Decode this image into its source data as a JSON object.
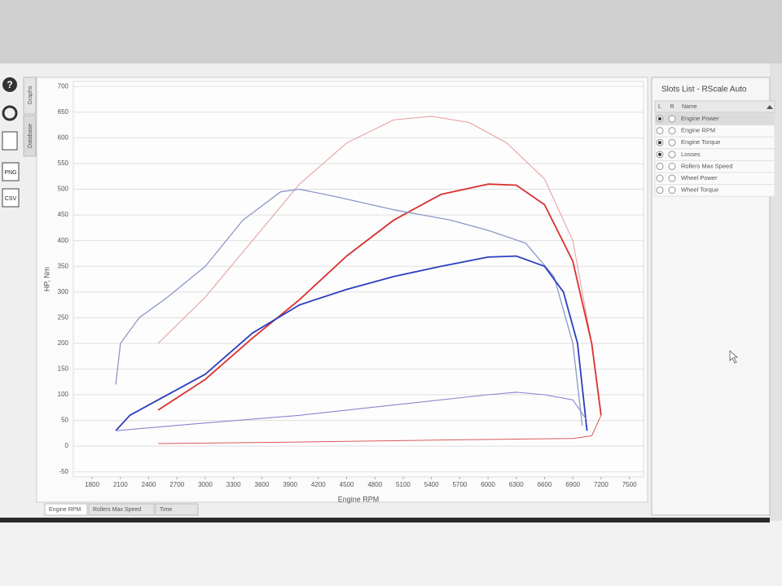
{
  "sidebar": {
    "tabs": [
      "Graphs",
      "Database"
    ],
    "buttons": [
      "PNG",
      "CSV"
    ]
  },
  "chart_data": {
    "type": "line",
    "x_label": "Engine RPM",
    "y_label": "HP, Nm",
    "xlim": [
      1600,
      7650
    ],
    "ylim": [
      -60,
      710
    ],
    "xticks": [
      1800,
      2100,
      2400,
      2700,
      3000,
      3300,
      3600,
      3900,
      4200,
      4500,
      4800,
      5100,
      5400,
      5700,
      6000,
      6300,
      6600,
      6900,
      7200,
      7500
    ],
    "yticks": [
      -50,
      0,
      50,
      100,
      150,
      200,
      250,
      300,
      350,
      400,
      450,
      500,
      550,
      600,
      650,
      700
    ],
    "grid": true,
    "series": [
      {
        "color": "#e79a9a",
        "line_width": 1,
        "x": [
          2500,
          3000,
          3500,
          4000,
          4500,
          5000,
          5400,
          5800,
          6200,
          6600,
          6900,
          7100,
          7200
        ],
        "values": [
          200,
          290,
          400,
          510,
          590,
          635,
          642,
          630,
          590,
          520,
          400,
          200,
          60
        ]
      },
      {
        "color": "#d9302e",
        "line_width": 1.8,
        "x": [
          2500,
          3000,
          3500,
          4000,
          4500,
          5000,
          5500,
          6000,
          6300,
          6600,
          6900,
          7100,
          7200
        ],
        "values": [
          70,
          130,
          210,
          285,
          370,
          440,
          490,
          510,
          508,
          470,
          360,
          200,
          60
        ]
      },
      {
        "color": "#8c98c8",
        "line_width": 1.3,
        "x": [
          2050,
          2100,
          2300,
          2600,
          3000,
          3400,
          3800,
          4000,
          4400,
          5000,
          5600,
          6000,
          6400,
          6700,
          6900,
          7000
        ],
        "values": [
          120,
          200,
          250,
          290,
          350,
          440,
          495,
          500,
          485,
          460,
          440,
          420,
          395,
          330,
          200,
          40
        ]
      },
      {
        "color": "#2a3fc0",
        "line_width": 1.8,
        "x": [
          2050,
          2200,
          2500,
          3000,
          3500,
          4000,
          4500,
          5000,
          5500,
          6000,
          6300,
          6600,
          6800,
          6950,
          7050
        ],
        "values": [
          30,
          60,
          90,
          140,
          220,
          275,
          305,
          330,
          350,
          368,
          370,
          350,
          300,
          200,
          30
        ]
      },
      {
        "color": "#8a86d0",
        "line_width": 1.1,
        "x": [
          2050,
          3000,
          4000,
          5000,
          6000,
          6300,
          6600,
          6900,
          7050
        ],
        "values": [
          30,
          45,
          60,
          80,
          100,
          105,
          100,
          90,
          50
        ]
      },
      {
        "color": "#d95a5a",
        "line_width": 1,
        "x": [
          2500,
          4000,
          5500,
          6900,
          7100,
          7200
        ],
        "values": [
          5,
          8,
          12,
          15,
          20,
          60
        ]
      }
    ]
  },
  "bottom_tabs": [
    "Engine RPM",
    "Rollers Max Speed",
    "Time"
  ],
  "slots_list": {
    "title": "Slots List - RScale Auto",
    "columns": [
      "L",
      "R",
      "Name"
    ],
    "rows": [
      {
        "name": "Engine Power",
        "l": true
      },
      {
        "name": "Engine RPM",
        "l": false
      },
      {
        "name": "Engine Torque",
        "l": true
      },
      {
        "name": "Losses",
        "l": true
      },
      {
        "name": "Rollers Max Speed",
        "l": false
      },
      {
        "name": "Wheel Power",
        "l": false
      },
      {
        "name": "Wheel Torque",
        "l": false
      }
    ]
  }
}
